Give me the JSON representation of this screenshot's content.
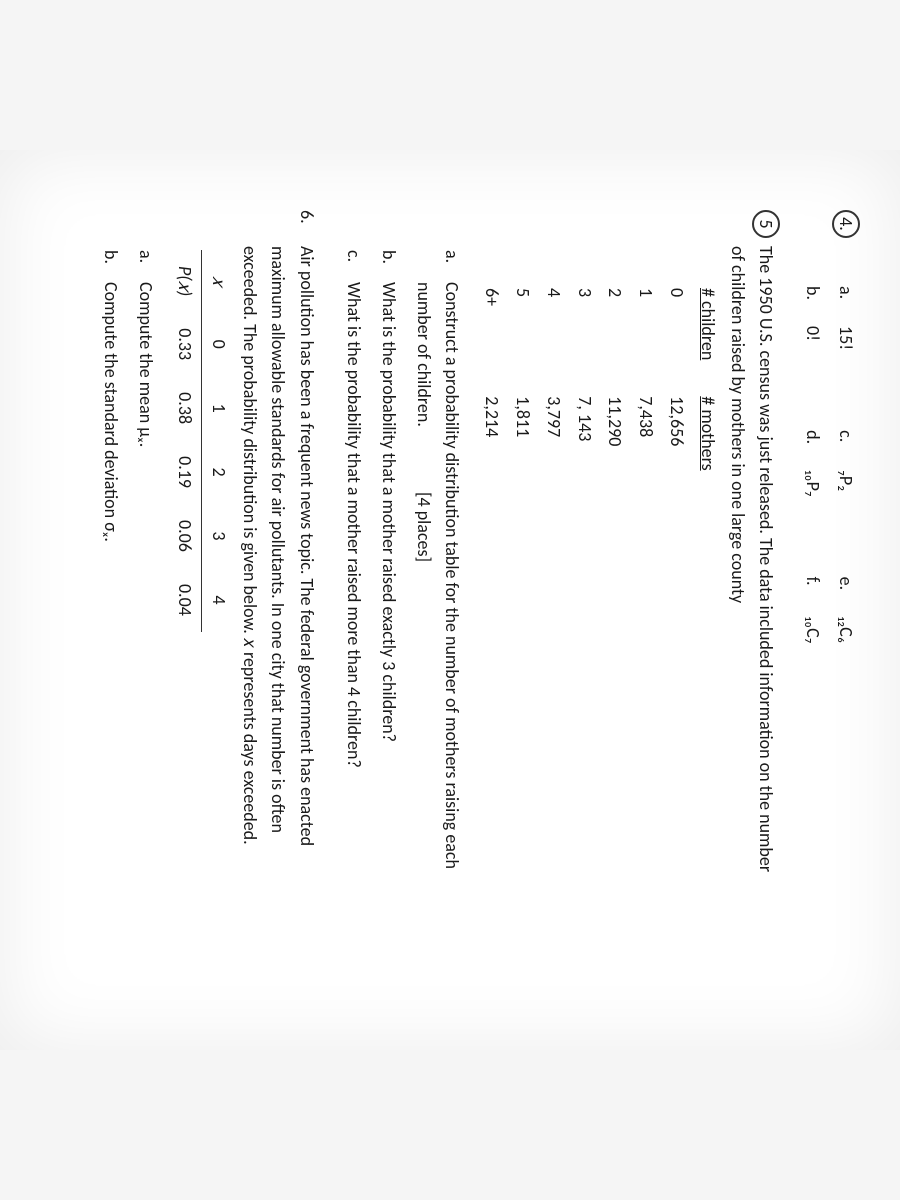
{
  "q4": {
    "number": "4.",
    "parts": {
      "a": {
        "label": "a.",
        "value": "15!"
      },
      "b": {
        "label": "b.",
        "value": "0!"
      },
      "c": {
        "label": "c.",
        "value": "₇P₂"
      },
      "d": {
        "label": "d.",
        "value": "₁₀P₇"
      },
      "e": {
        "label": "e.",
        "value": "₁₂C₆"
      },
      "f": {
        "label": "f.",
        "value": "₁₀C₇"
      }
    }
  },
  "q5": {
    "number": "5",
    "intro1": "The 1950 U.S. census was just released.  The data included information on the number",
    "intro2": "of children raised by mothers in one large county",
    "table": {
      "header1": "# children",
      "header2": "# mothers",
      "rows": [
        {
          "c": "0",
          "m": "12,656"
        },
        {
          "c": "1",
          "m": "7,438"
        },
        {
          "c": "2",
          "m": "11,290"
        },
        {
          "c": "3",
          "m": "7, 143"
        },
        {
          "c": "4",
          "m": "3,797"
        },
        {
          "c": "5",
          "m": "1,811"
        },
        {
          "c": "6+",
          "m": "2,214"
        }
      ]
    },
    "parts": {
      "a": {
        "label": "a.",
        "text1": "Construct a probability distribution table for the number of mothers raising each",
        "text2": "number of children.                [4 places]"
      },
      "b": {
        "label": "b.",
        "text": "What is the probability that a mother raised exactly 3 children?"
      },
      "c": {
        "label": "c.",
        "text": "What is the probability that a mother raised more than 4 children?"
      }
    }
  },
  "q6": {
    "number": "6.",
    "intro1": "Air pollution has been a frequent news topic.  The federal government has enacted",
    "intro2": "maximum allowable standards for air pollutants.  In one city that number is often",
    "intro3": "exceeded.  The probability distribution is given below.  𝑥 represents days exceeded.",
    "table": {
      "x_label": "𝑥",
      "px_label": "P(𝑥)",
      "x": [
        "0",
        "1",
        "2",
        "3",
        "4"
      ],
      "px": [
        "0.33",
        "0.38",
        "0.19",
        "0.06",
        "0.04"
      ]
    },
    "parts": {
      "a": {
        "label": "a.",
        "text": "Compute the mean μₓ."
      },
      "b": {
        "label": "b.",
        "text": "Compute the standard deviation σₓ."
      }
    }
  }
}
